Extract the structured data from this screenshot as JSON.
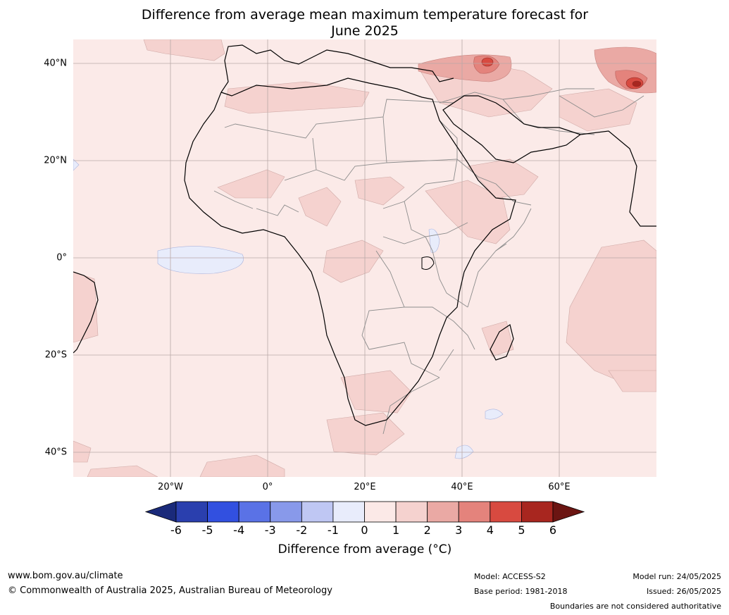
{
  "title_line1": "Difference from average mean maximum temperature forecast for",
  "title_line2": "June 2025",
  "map": {
    "lat_labels": [
      "40°N",
      "20°N",
      "0°",
      "20°S",
      "40°S"
    ],
    "lon_labels": [
      "20°W",
      "0°",
      "20°E",
      "40°E",
      "60°E"
    ],
    "ocean_color": "#fbeae8",
    "land_color": "#fbeae8",
    "anomaly_regions": "Mostly 0 to +1 °C across Africa; +1 to +2 °C over the Sahel, East Africa, Arabian Peninsula, Madagascar and southern Indian Ocean; +3 to +6 °C hotspots over eastern Turkey and Afghanistan/Pakistan; small 0 to -1 °C areas in equatorial Atlantic and southern Indian Ocean"
  },
  "colorbar": {
    "ticks": [
      "-6",
      "-5",
      "-4",
      "-3",
      "-2",
      "-1",
      "0",
      "1",
      "2",
      "3",
      "4",
      "5",
      "6"
    ],
    "colors": [
      "#1a2a7a",
      "#2a3fae",
      "#3250e0",
      "#5a72e6",
      "#8899ea",
      "#bfc7f3",
      "#e8ecfb",
      "#fbe9e7",
      "#f5d2cf",
      "#eaa9a4",
      "#e4837c",
      "#d84a40",
      "#a8261f",
      "#6b1512"
    ],
    "title": "Difference from average (°C)"
  },
  "footer": {
    "url": "www.bom.gov.au/climate",
    "copyright": "© Commonwealth of Australia 2025, Australian Bureau of Meteorology",
    "model": "Model: ACCESS-S2",
    "base_period": "Base period: 1981-2018",
    "model_run": "Model run: 24/05/2025",
    "issued": "Issued: 26/05/2025",
    "disclaimer": "Boundaries are not considered authoritative"
  }
}
